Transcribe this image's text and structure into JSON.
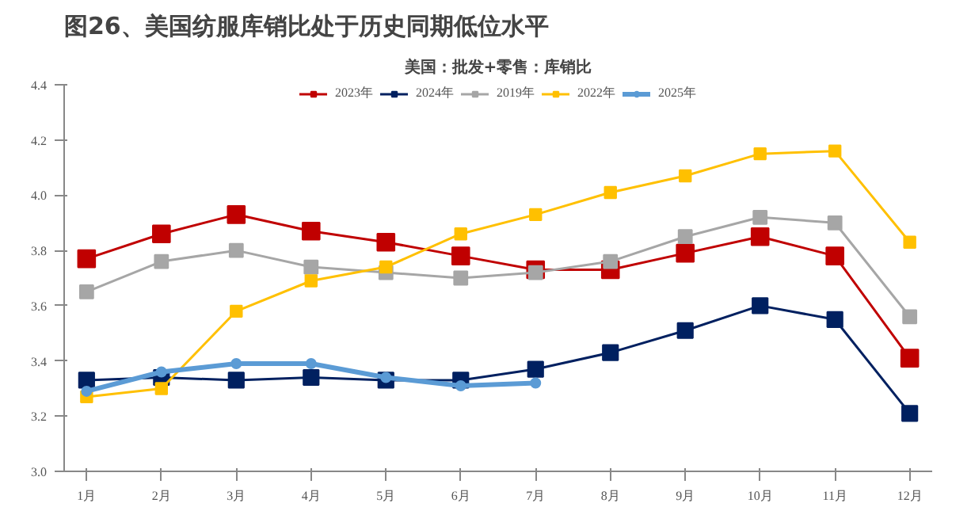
{
  "chart_data": {
    "type": "line",
    "title": "图26、美国纺服库销比处于历史同期低位水平",
    "subtitle": "美国：批发+零售：库销比",
    "categories": [
      "1月",
      "2月",
      "3月",
      "4月",
      "5月",
      "6月",
      "7月",
      "8月",
      "9月",
      "10月",
      "11月",
      "12月"
    ],
    "series": [
      {
        "name": "2023年",
        "color": "#c00000",
        "marker": "square",
        "values": [
          3.77,
          3.86,
          3.93,
          3.87,
          3.83,
          3.78,
          3.73,
          3.73,
          3.79,
          3.85,
          3.78,
          3.41
        ]
      },
      {
        "name": "2024年",
        "color": "#002060",
        "marker": "square",
        "values": [
          3.33,
          3.34,
          3.33,
          3.34,
          3.33,
          3.33,
          3.37,
          3.43,
          3.51,
          3.6,
          3.55,
          3.21
        ]
      },
      {
        "name": "2019年",
        "color": "#a6a6a6",
        "marker": "square",
        "values": [
          3.65,
          3.76,
          3.8,
          3.74,
          3.72,
          3.7,
          3.72,
          3.76,
          3.85,
          3.92,
          3.9,
          3.56
        ]
      },
      {
        "name": "2022年",
        "color": "#ffc000",
        "marker": "square",
        "values": [
          3.27,
          3.3,
          3.58,
          3.69,
          3.74,
          3.86,
          3.93,
          4.01,
          4.07,
          4.15,
          4.16,
          3.83
        ]
      },
      {
        "name": "2025年",
        "color": "#5b9bd5",
        "marker": "circle",
        "values": [
          3.29,
          3.36,
          3.39,
          3.39,
          3.34,
          3.31,
          3.32,
          null,
          null,
          null,
          null,
          null
        ]
      }
    ],
    "ylim": [
      3.0,
      4.4
    ],
    "yticks": [
      {
        "value": 3.0,
        "label": "3.0"
      },
      {
        "value": 3.2,
        "label": "3.2"
      },
      {
        "value": 3.4,
        "label": "3.4"
      },
      {
        "value": 3.6,
        "label": "3.6"
      },
      {
        "value": 3.8,
        "label": "3.8"
      },
      {
        "value": 4.0,
        "label": "4.0"
      },
      {
        "value": 4.2,
        "label": "4.2"
      },
      {
        "value": 4.4,
        "label": "4.4"
      }
    ],
    "grid": false,
    "legend": "top",
    "line_style": "solid"
  }
}
